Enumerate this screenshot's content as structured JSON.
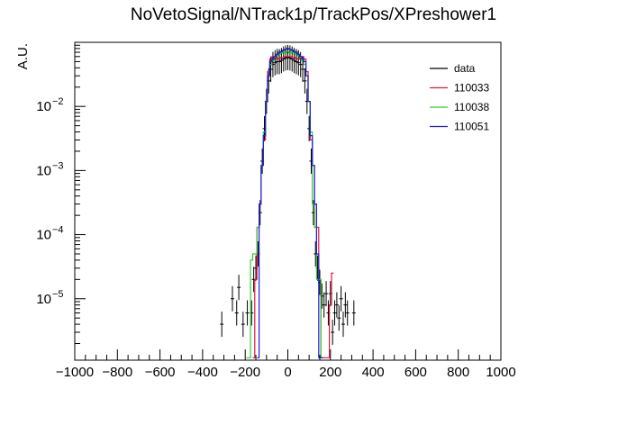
{
  "chart_data": {
    "type": "histogram",
    "title": "NoVetoSignal/NTrack1p/TrackPos/XPreshower1",
    "xlabel": "",
    "ylabel": "A.U.",
    "xlim": [
      -1000,
      1000
    ],
    "ylim": [
      1.1e-06,
      0.1
    ],
    "yscale": "log",
    "x_ticks": [
      "−1000",
      "−800",
      "−600",
      "−400",
      "−200",
      "0",
      "200",
      "400",
      "600",
      "800",
      "1000"
    ],
    "x_tick_values": [
      -1000,
      -800,
      -600,
      -400,
      -200,
      0,
      200,
      400,
      600,
      800,
      1000
    ],
    "y_ticks": [
      {
        "value": 1e-05,
        "base": "10",
        "exp": "−5"
      },
      {
        "value": 0.0001,
        "base": "10",
        "exp": "−4"
      },
      {
        "value": 0.001,
        "base": "10",
        "exp": "−3"
      },
      {
        "value": 0.01,
        "base": "10",
        "exp": "−2"
      }
    ],
    "legend_position": "top-right",
    "bin_width": 10,
    "series": [
      {
        "name": "data",
        "style": "points",
        "color": "#000000",
        "x": [
          -310,
          -260,
          -240,
          -230,
          -210,
          -190,
          -170,
          -160,
          -150,
          -140,
          -130,
          -120,
          -110,
          -100,
          -90,
          -80,
          -70,
          -60,
          -50,
          -40,
          -30,
          -20,
          -10,
          0,
          10,
          20,
          30,
          40,
          50,
          60,
          70,
          80,
          90,
          100,
          110,
          120,
          130,
          140,
          150,
          160,
          170,
          180,
          190,
          200,
          210,
          220,
          230,
          240,
          250,
          260,
          270,
          280,
          310
        ],
        "y": [
          4e-06,
          1e-05,
          6e-06,
          1.5e-05,
          4e-06,
          6e-06,
          6e-06,
          2e-05,
          3e-05,
          5e-05,
          0.00022,
          0.0014,
          0.0045,
          0.012,
          0.025,
          0.038,
          0.045,
          0.048,
          0.05,
          0.05,
          0.052,
          0.055,
          0.057,
          0.058,
          0.057,
          0.055,
          0.052,
          0.05,
          0.048,
          0.045,
          0.038,
          0.025,
          0.012,
          0.0045,
          0.0014,
          0.00022,
          5e-05,
          3e-05,
          1.8e-05,
          1.1e-05,
          8e-06,
          1.2e-05,
          6e-06,
          1.2e-05,
          3e-06,
          6e-06,
          8e-06,
          5e-06,
          1e-05,
          4e-06,
          8e-06,
          6e-06,
          6e-06
        ]
      },
      {
        "name": "110033",
        "style": "step",
        "color": "#e3173d",
        "x": [
          -160,
          -150,
          -140,
          -130,
          -120,
          -110,
          -100,
          -90,
          -80,
          -70,
          -60,
          -50,
          -40,
          -30,
          -20,
          -10,
          0,
          10,
          20,
          30,
          40,
          50,
          60,
          70,
          80,
          90,
          100,
          110,
          120,
          130,
          140,
          150,
          160,
          170,
          180,
          190,
          200,
          210
        ],
        "y": [
          1.2e-06,
          2e-05,
          0.00013,
          0.0003,
          0.0012,
          0.003,
          0.012,
          0.035,
          0.055,
          0.06,
          0.058,
          0.055,
          0.056,
          0.058,
          0.058,
          0.06,
          0.06,
          0.06,
          0.058,
          0.058,
          0.056,
          0.055,
          0.058,
          0.06,
          0.055,
          0.035,
          0.012,
          0.003,
          0.0012,
          0.0003,
          0.00013,
          2e-05,
          1.2e-06,
          1.2e-06,
          1.2e-06,
          1.2e-06,
          8e-06,
          2.5e-05
        ]
      },
      {
        "name": "110038",
        "style": "step",
        "color": "#33cc33",
        "x": [
          -190,
          -180,
          -170,
          -160,
          -150,
          -140,
          -130,
          -120,
          -110,
          -100,
          -90,
          -80,
          -70,
          -60,
          -50,
          -40,
          -30,
          -20,
          -10,
          0,
          10,
          20,
          30,
          40,
          50,
          60,
          70,
          80,
          90,
          100,
          110,
          120,
          130,
          140,
          150,
          160
        ],
        "y": [
          1.2e-06,
          1.2e-06,
          4e-05,
          5e-05,
          5e-05,
          0.00013,
          0.0003,
          0.0012,
          0.004,
          0.012,
          0.03,
          0.045,
          0.052,
          0.058,
          0.062,
          0.065,
          0.068,
          0.07,
          0.068,
          0.072,
          0.068,
          0.07,
          0.068,
          0.065,
          0.062,
          0.058,
          0.052,
          0.045,
          0.03,
          0.012,
          0.004,
          0.0003,
          0.00013,
          2e-05,
          2e-05,
          1.2e-06
        ]
      },
      {
        "name": "110051",
        "style": "step",
        "color": "#1f1fdd",
        "x": [
          -140,
          -130,
          -120,
          -110,
          -100,
          -90,
          -80,
          -70,
          -60,
          -50,
          -40,
          -30,
          -20,
          -10,
          0,
          10,
          20,
          30,
          40,
          50,
          60,
          70,
          80,
          90,
          100,
          110,
          120,
          130,
          140,
          150,
          160
        ],
        "y": [
          1.2e-06,
          0.0003,
          0.0012,
          0.0035,
          0.012,
          0.03,
          0.05,
          0.055,
          0.06,
          0.065,
          0.07,
          0.072,
          0.075,
          0.078,
          0.08,
          0.078,
          0.075,
          0.072,
          0.07,
          0.065,
          0.06,
          0.055,
          0.05,
          0.03,
          0.012,
          0.0035,
          0.0012,
          0.0003,
          5e-05,
          1.2e-06,
          1.2e-06
        ]
      }
    ]
  }
}
